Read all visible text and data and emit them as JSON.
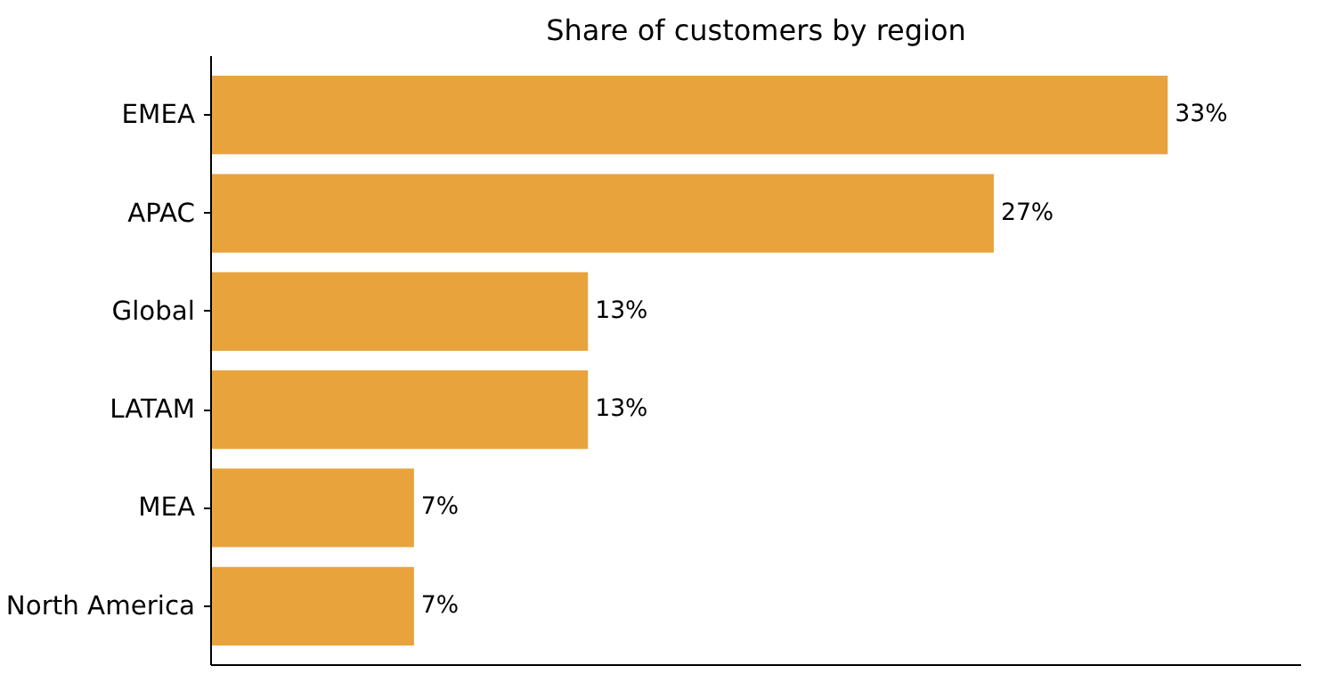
{
  "chart_data": {
    "type": "bar",
    "orientation": "horizontal",
    "title": "Share of customers by region",
    "categories": [
      "EMEA",
      "APAC",
      "Global",
      "LATAM",
      "MEA",
      "North America"
    ],
    "values": [
      33,
      27,
      13,
      13,
      7,
      7
    ],
    "value_labels": [
      "33%",
      "27%",
      "13%",
      "13%",
      "7%",
      "7%"
    ],
    "color": "#e8a33d",
    "xlim": [
      0,
      37.6
    ]
  }
}
